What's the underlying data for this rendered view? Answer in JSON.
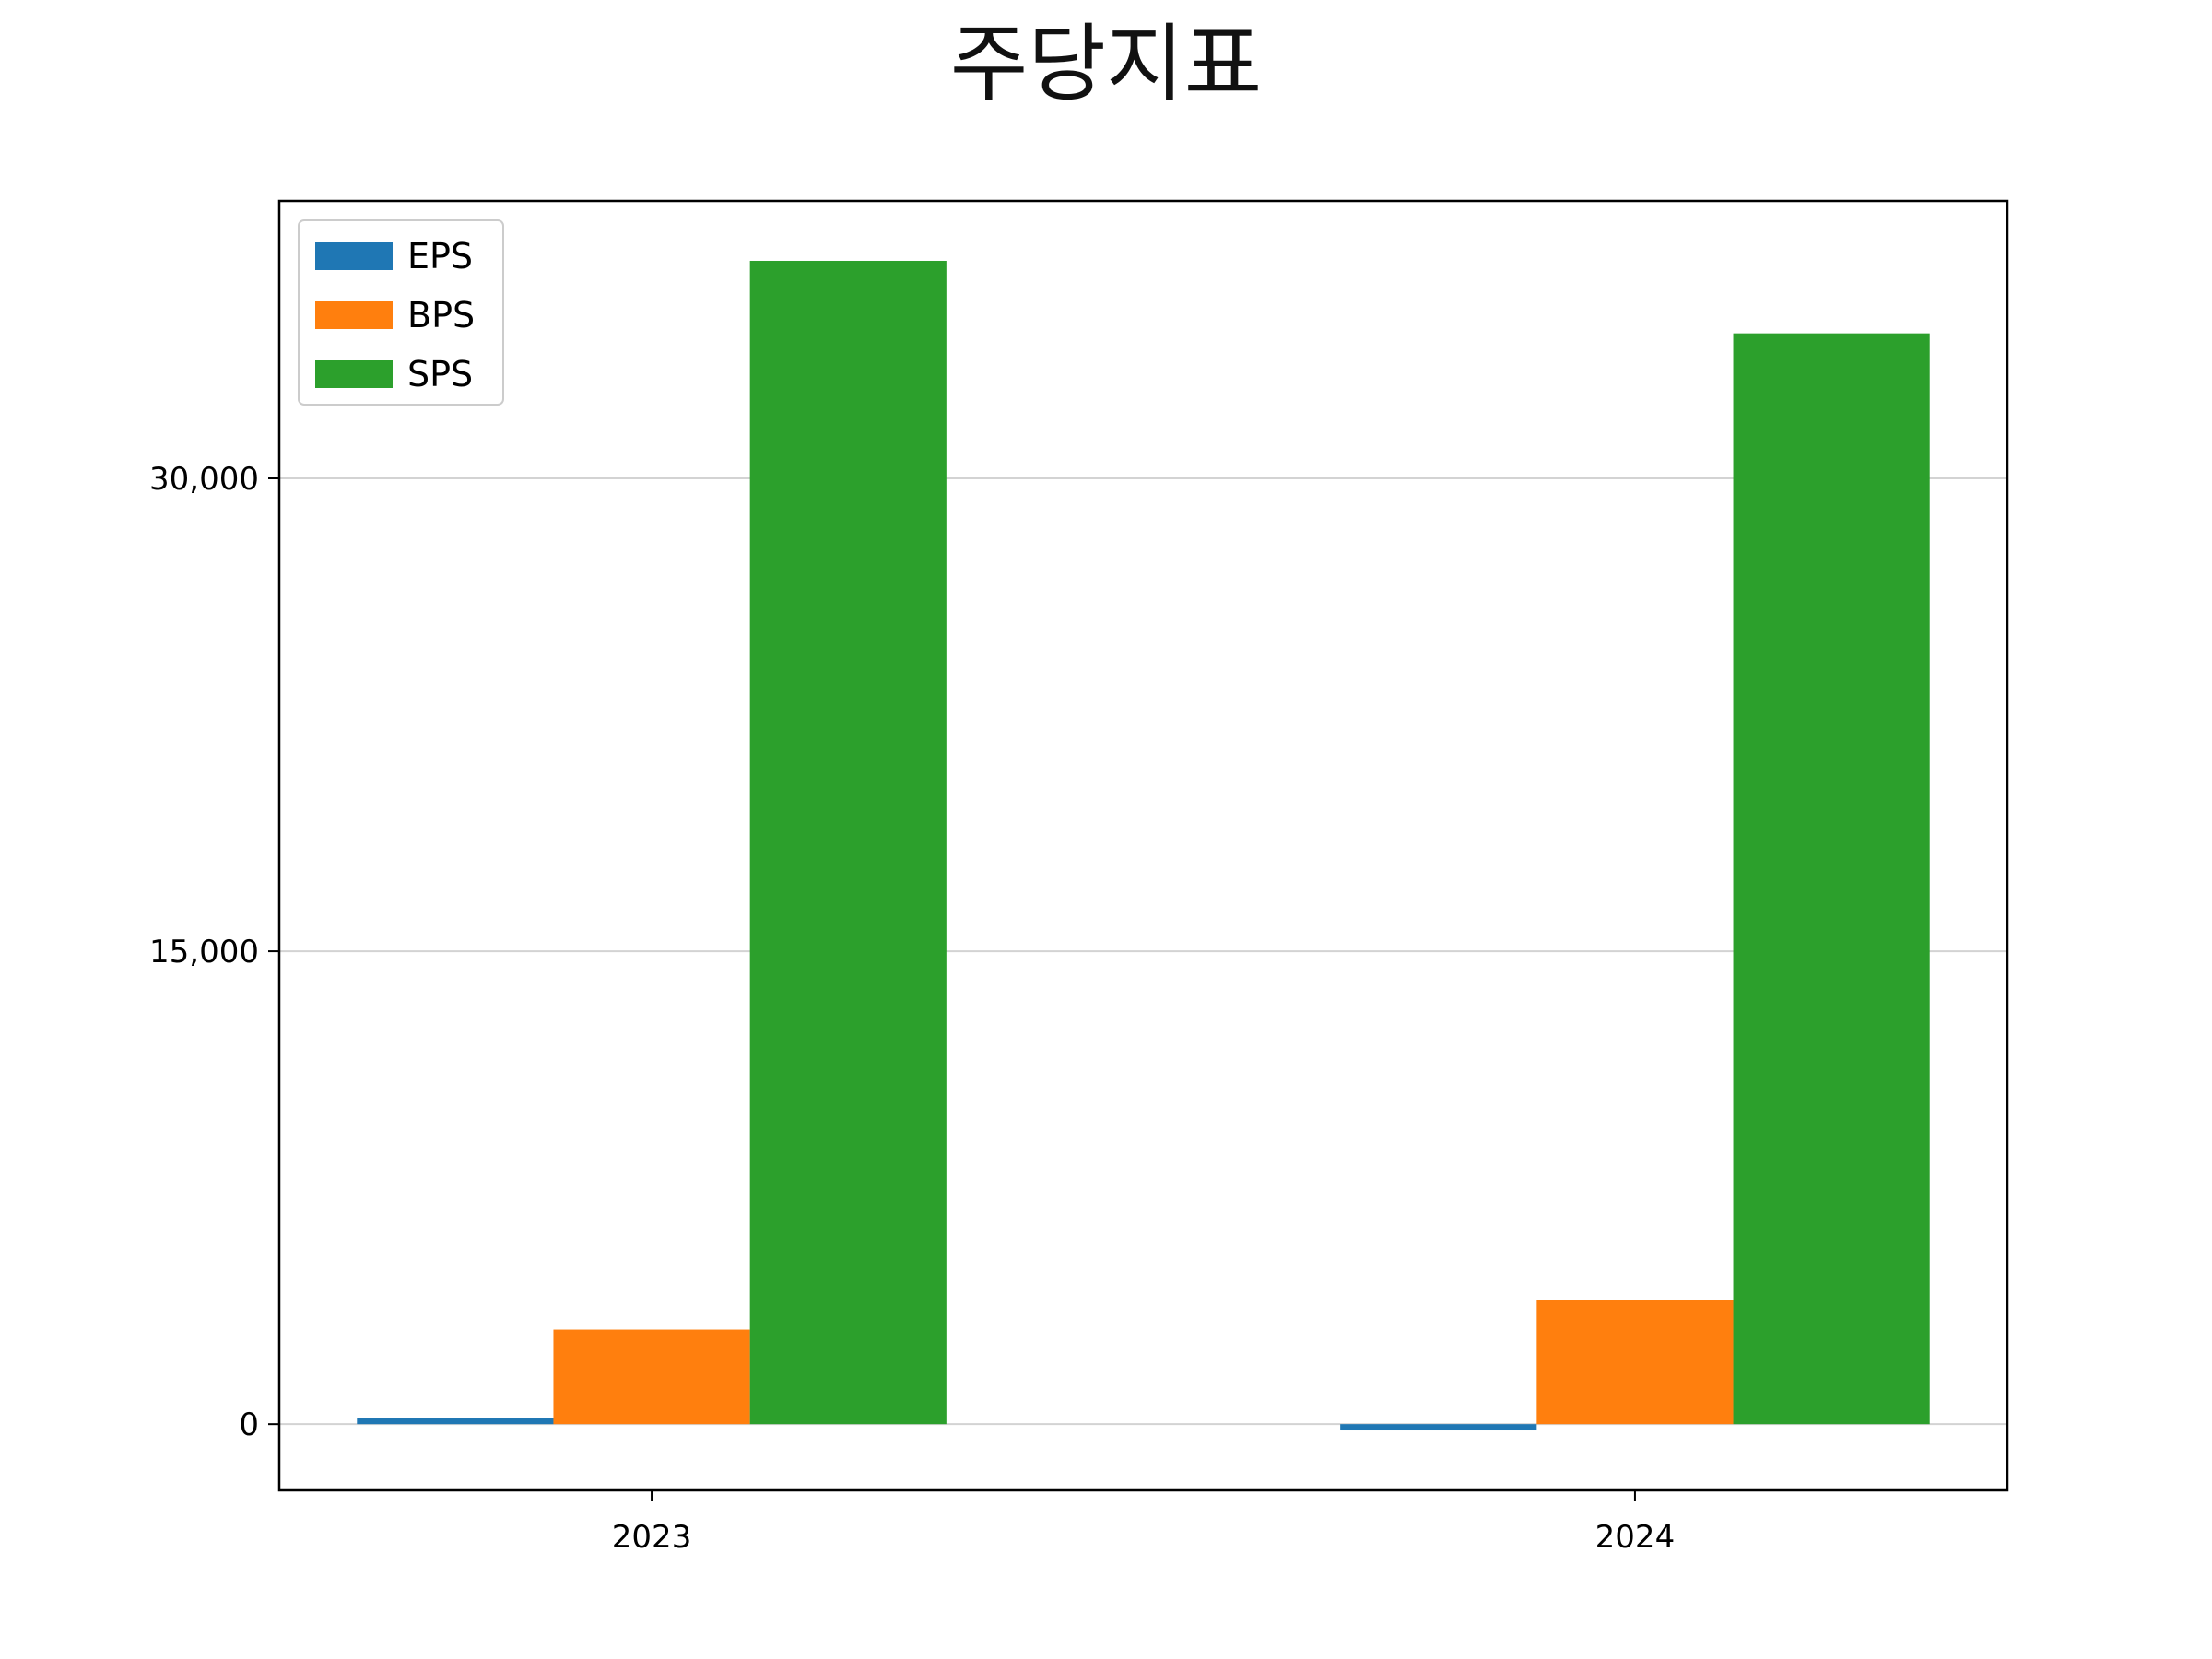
{
  "chart_data": {
    "type": "bar",
    "title": "주당지표",
    "xlabel": "",
    "ylabel": "",
    "categories": [
      "2023",
      "2024"
    ],
    "series": [
      {
        "name": "EPS",
        "values": [
          180,
          -200
        ],
        "color": "#1f77b4"
      },
      {
        "name": "BPS",
        "values": [
          3000,
          3950
        ],
        "color": "#ff7f0e"
      },
      {
        "name": "SPS",
        "values": [
          36900,
          34600
        ],
        "color": "#2ca02c"
      }
    ],
    "ylim": [
      -2100,
      38800
    ],
    "yticks": [
      0,
      15000,
      30000
    ],
    "ytick_labels": [
      "0",
      "15,000",
      "30,000"
    ],
    "grid": "horizontal",
    "legend_position": "upper-left"
  }
}
